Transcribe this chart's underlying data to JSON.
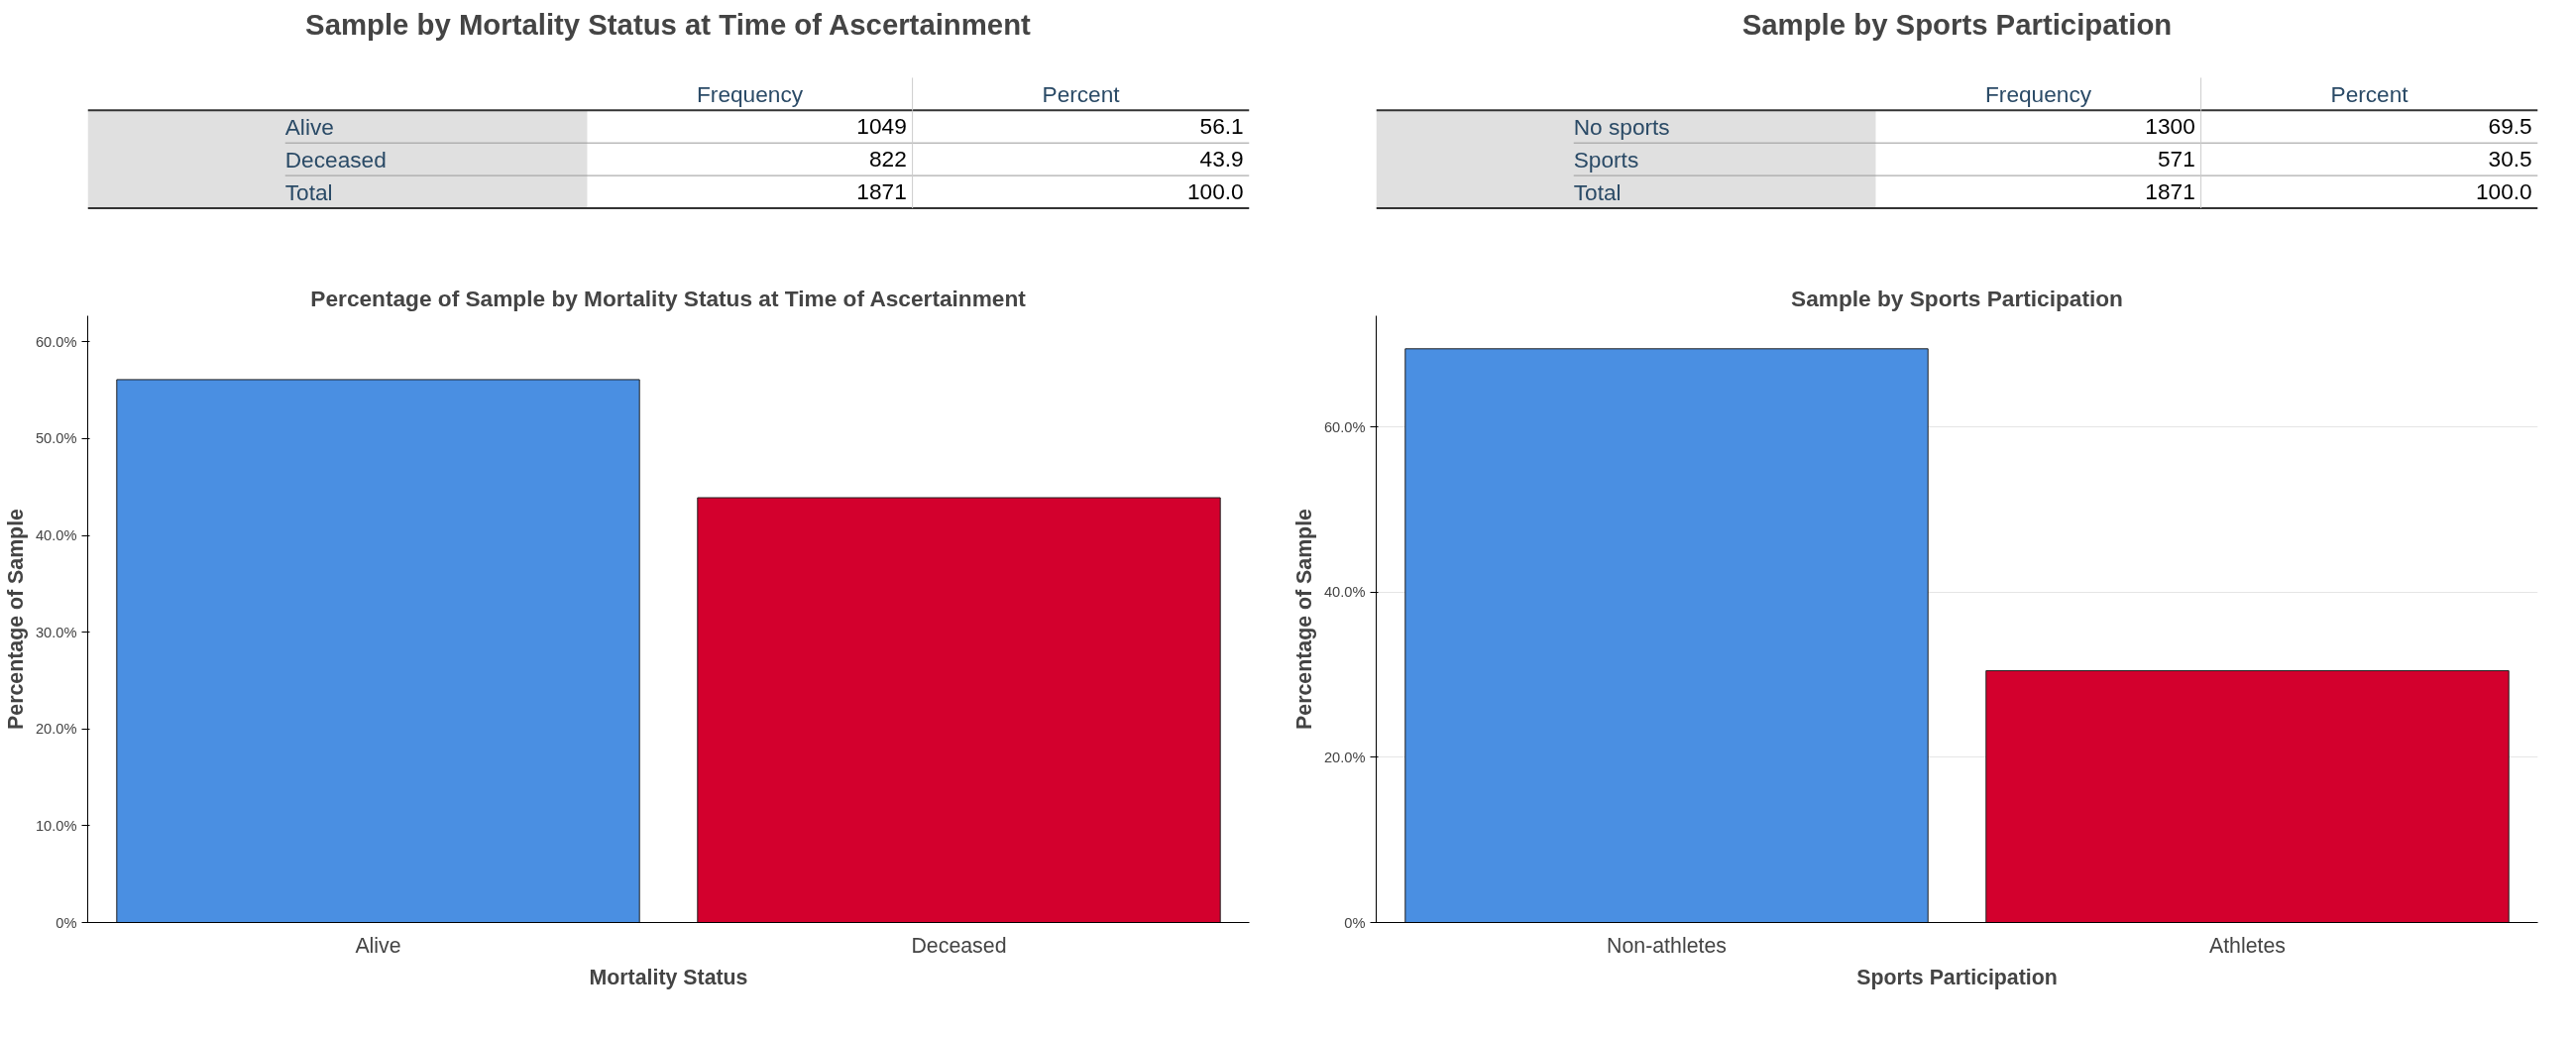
{
  "chart_data": [
    {
      "type": "other",
      "title": "Sample by Mortality Status at Time of Ascertainment",
      "data_labels": true,
      "categories": [
        "Alive",
        "Deceased",
        "Total"
      ],
      "series": [
        {
          "name": "Frequency",
          "values": [
            1049,
            822,
            1871
          ]
        },
        {
          "name": "Percent",
          "values": [
            56.1,
            43.9,
            100.0
          ],
          "value_labels": [
            "56.1",
            "43.9",
            "100.0"
          ]
        }
      ]
    },
    {
      "type": "other",
      "title": "Sample by Sports Participation",
      "data_labels": true,
      "categories": [
        "No sports",
        "Sports",
        "Total"
      ],
      "series": [
        {
          "name": "Frequency",
          "values": [
            1300,
            571,
            1871
          ]
        },
        {
          "name": "Percent",
          "values": [
            69.5,
            30.5,
            100.0
          ],
          "value_labels": [
            "69.5",
            "30.5",
            "100.0"
          ]
        }
      ]
    },
    {
      "type": "bar",
      "title": "Percentage of Sample by Mortality Status at Time of Ascertainment",
      "xlabel": "Mortality Status",
      "ylabel": "Percentage of Sample",
      "categories": [
        "Alive",
        "Deceased"
      ],
      "values": [
        56.1,
        43.9
      ],
      "colors": [
        "#4a8fe2",
        "#d3002d"
      ],
      "ylim": [
        0,
        62.7
      ],
      "yticks": [
        {
          "value": 0,
          "label": "0%"
        },
        {
          "value": 10,
          "label": "10.0%"
        },
        {
          "value": 20,
          "label": "20.0%"
        },
        {
          "value": 30,
          "label": "30.0%"
        },
        {
          "value": 40,
          "label": "40.0%"
        },
        {
          "value": 50,
          "label": "50.0%"
        },
        {
          "value": 60,
          "label": "60.0%"
        }
      ],
      "grid": false
    },
    {
      "type": "bar",
      "title": "Sample by Sports Participation",
      "xlabel": "Sports Participation",
      "ylabel": "Percentage of Sample",
      "categories": [
        "Non-athletes",
        "Athletes"
      ],
      "values": [
        69.5,
        30.5
      ],
      "colors": [
        "#4a8fe2",
        "#d3002d"
      ],
      "ylim": [
        0,
        73.5
      ],
      "yticks": [
        {
          "value": 0,
          "label": "0%"
        },
        {
          "value": 20,
          "label": "20.0%"
        },
        {
          "value": 40,
          "label": "40.0%"
        },
        {
          "value": 60,
          "label": "60.0%"
        }
      ],
      "grid": "y"
    }
  ]
}
